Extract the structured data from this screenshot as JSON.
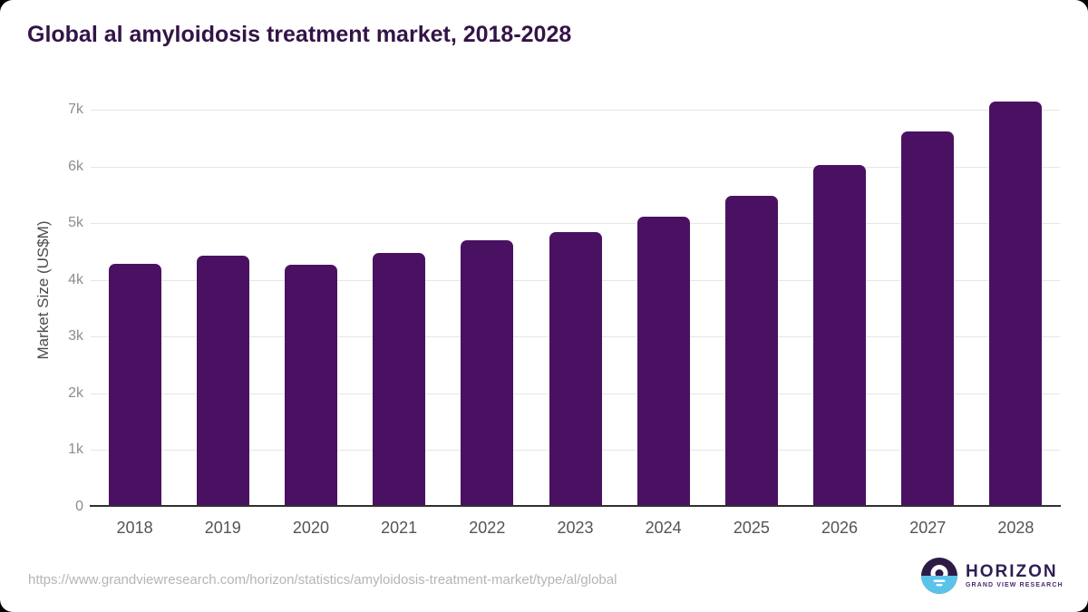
{
  "page": {
    "background_color": "#000000",
    "card_color": "#ffffff"
  },
  "chart_data": {
    "type": "bar",
    "title": "Global al amyloidosis treatment market, 2018-2028",
    "categories": [
      "2018",
      "2019",
      "2020",
      "2021",
      "2022",
      "2023",
      "2024",
      "2025",
      "2026",
      "2027",
      "2028"
    ],
    "values": [
      4290,
      4420,
      4260,
      4480,
      4700,
      4850,
      5120,
      5480,
      6030,
      6620,
      7150
    ],
    "series_name": "Market Size",
    "xlabel": "",
    "ylabel": "Market Size (US$M)",
    "ylim": [
      0,
      7500
    ],
    "yticks": [
      {
        "value": 0,
        "label": "0"
      },
      {
        "value": 1000,
        "label": "1k"
      },
      {
        "value": 2000,
        "label": "2k"
      },
      {
        "value": 3000,
        "label": "3k"
      },
      {
        "value": 4000,
        "label": "4k"
      },
      {
        "value": 5000,
        "label": "5k"
      },
      {
        "value": 6000,
        "label": "6k"
      },
      {
        "value": 7000,
        "label": "7k"
      }
    ],
    "grid": true,
    "legend_position": "none",
    "bar_color": "#4a1162"
  },
  "colors": {
    "title": "#331447",
    "bar": "#4a1162",
    "grid": "#e6e6e6",
    "axis": "#303030",
    "tick_label": "#8e8e8e",
    "x_label": "#545454",
    "url_text": "#b5b5b5",
    "logo_dark": "#2d1b45",
    "logo_blue": "#5ac3ea",
    "logo_text": "#2f1f55"
  },
  "footer": {
    "source_url": "https://www.grandviewresearch.com/horizon/statistics/amyloidosis-treatment-market/type/al/global",
    "logo": {
      "name": "HORIZON",
      "subtitle": "GRAND VIEW RESEARCH"
    }
  }
}
